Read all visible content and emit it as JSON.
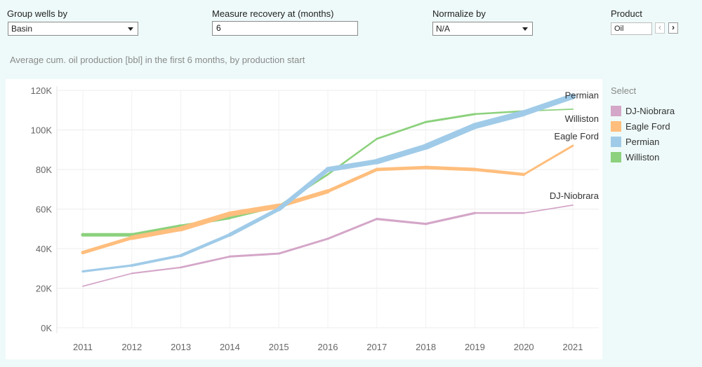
{
  "controls": {
    "group": {
      "label": "Group wells by",
      "value": "Basin"
    },
    "recovery": {
      "label": "Measure recovery at (months)",
      "value": "6"
    },
    "normalize": {
      "label": "Normalize by",
      "value": "N/A"
    },
    "product": {
      "label": "Product",
      "value": "Oil",
      "prev_icon": "chevron-left",
      "next_icon": "chevron-right"
    }
  },
  "subtitle": "Average cum. oil production [bbl] in the first 6 months, by production start",
  "legend": {
    "title": "Select",
    "items": [
      {
        "label": "DJ-Niobrara",
        "color": "#d4a6c8"
      },
      {
        "label": "Eagle Ford",
        "color": "#ffbe7d"
      },
      {
        "label": "Permian",
        "color": "#a0cbe8"
      },
      {
        "label": "Williston",
        "color": "#8cd17d"
      }
    ]
  },
  "chart_data": {
    "type": "line",
    "x": [
      2011,
      2012,
      2013,
      2014,
      2015,
      2016,
      2017,
      2018,
      2019,
      2020,
      2021
    ],
    "ylim": [
      0,
      120000
    ],
    "yticks": [
      0,
      20000,
      40000,
      60000,
      80000,
      100000,
      120000
    ],
    "ytick_labels": [
      "0K",
      "20K",
      "40K",
      "60K",
      "80K",
      "100K",
      "120K"
    ],
    "xtick_labels": [
      "2011",
      "2012",
      "2013",
      "2014",
      "2015",
      "2016",
      "2017",
      "2018",
      "2019",
      "2020",
      "2021"
    ],
    "grid": true,
    "series": [
      {
        "name": "DJ-Niobrara",
        "color": "#d4a6c8",
        "values": [
          21000,
          27500,
          30500,
          36000,
          37500,
          45000,
          55000,
          52500,
          58000,
          58000,
          62000
        ],
        "widths": [
          1.5,
          2,
          2.5,
          3,
          3,
          3,
          3,
          3.5,
          3,
          2,
          1.5
        ]
      },
      {
        "name": "Eagle Ford",
        "color": "#ffbe7d",
        "values": [
          38000,
          45500,
          50000,
          57500,
          61500,
          69000,
          80000,
          81000,
          80000,
          77500,
          92000
        ],
        "widths": [
          4,
          6,
          7,
          7.5,
          7,
          5,
          4.5,
          5,
          5,
          4,
          2
        ]
      },
      {
        "name": "Permian",
        "color": "#a0cbe8",
        "values": [
          28500,
          31500,
          36500,
          47000,
          60000,
          80000,
          84000,
          91500,
          102000,
          108500,
          117000
        ],
        "widths": [
          3,
          3.5,
          4,
          5,
          6,
          7,
          7.5,
          8.5,
          9,
          8.5,
          8
        ]
      },
      {
        "name": "Williston",
        "color": "#8cd17d",
        "values": [
          47000,
          47000,
          51500,
          55500,
          61500,
          77500,
          95500,
          104000,
          108000,
          109500,
          110500
        ],
        "widths": [
          5,
          5,
          4,
          3.5,
          3,
          2.5,
          2.5,
          3,
          3,
          2,
          1.5
        ]
      }
    ],
    "end_labels": [
      {
        "series": "Permian",
        "text": "Permian"
      },
      {
        "series": "Williston",
        "text": "Williston"
      },
      {
        "series": "Eagle Ford",
        "text": "Eagle Ford"
      },
      {
        "series": "DJ-Niobrara",
        "text": "DJ-Niobrara"
      }
    ]
  }
}
